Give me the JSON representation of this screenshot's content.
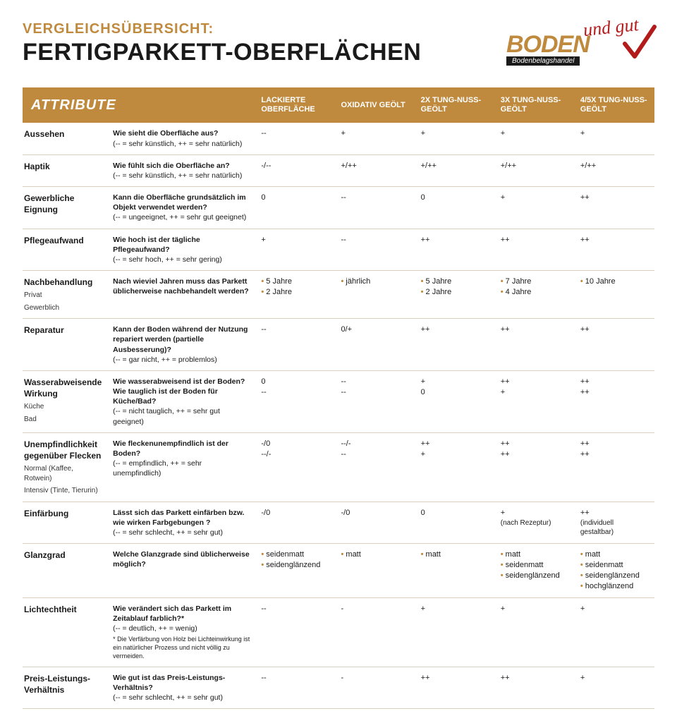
{
  "colors": {
    "brand_gold": "#c08a3e",
    "brand_red": "#b31b1b",
    "text": "#1a1a1a",
    "row_border": "#d9d0c2",
    "background": "#ffffff"
  },
  "header": {
    "pretitle": "VERGLEICHSÜBERSICHT:",
    "title": "FERTIGPARKETT-OBERFLÄCHEN",
    "logo_boden": "BODEN",
    "logo_undgut": "und gut",
    "logo_sub": "Bodenbelagshandel"
  },
  "table": {
    "head_attr": "ATTRIBUTE",
    "cols": [
      "LACKIERTE OBERFLÄCHE",
      "OXIDATIV GEÖLT",
      "2X TUNG-NUSS-GEÖLT",
      "3X TUNG-NUSS-GEÖLT",
      "4/5X TUNG-NUSS-GEÖLT"
    ],
    "rows": [
      {
        "attr": "Aussehen",
        "q": "Wie sieht die Oberfläche aus?",
        "legend": "(-- = sehr künstlich, ++ = sehr natürlich)",
        "vals": [
          [
            "--"
          ],
          [
            "+"
          ],
          [
            "+"
          ],
          [
            "+"
          ],
          [
            "+"
          ]
        ]
      },
      {
        "attr": "Haptik",
        "q": "Wie fühlt sich die Oberfläche an?",
        "legend": "(-- = sehr künstlich, ++ = sehr natürlich)",
        "vals": [
          [
            "-/--"
          ],
          [
            "+/++"
          ],
          [
            "+/++"
          ],
          [
            "+/++"
          ],
          [
            "+/++"
          ]
        ]
      },
      {
        "attr": "Gewerbliche Eignung",
        "q": "Kann die Oberfläche grundsätzlich im Objekt verwendet werden?",
        "legend": "(-- = ungeeignet, ++ = sehr gut geeignet)",
        "vals": [
          [
            "0"
          ],
          [
            "--"
          ],
          [
            "0"
          ],
          [
            "+"
          ],
          [
            "++"
          ]
        ]
      },
      {
        "attr": "Pflegeaufwand",
        "q": "Wie hoch ist der tägliche Pflegeaufwand?",
        "legend": "(-- = sehr hoch, ++ = sehr gering)",
        "vals": [
          [
            "+"
          ],
          [
            "--"
          ],
          [
            "++"
          ],
          [
            "++"
          ],
          [
            "++"
          ]
        ]
      },
      {
        "attr": "Nachbehandlung",
        "sub": [
          "Privat",
          "Gewerblich"
        ],
        "q": "Nach wieviel Jahren muss das Parkett üblicherweise nachbehandelt werden?",
        "vals": [
          [
            "5 Jahre",
            "2 Jahre"
          ],
          [
            "jährlich"
          ],
          [
            "5 Jahre",
            "2 Jahre"
          ],
          [
            "7 Jahre",
            "4 Jahre"
          ],
          [
            "10 Jahre"
          ]
        ],
        "bullet": true
      },
      {
        "attr": "Reparatur",
        "q": "Kann der Boden während der Nutzung repariert werden (partielle Ausbesserung)?",
        "legend": "(-- = gar nicht, ++ = problemlos)",
        "vals": [
          [
            "--"
          ],
          [
            "0/+"
          ],
          [
            "++"
          ],
          [
            "++"
          ],
          [
            "++"
          ]
        ]
      },
      {
        "attr": "Wasserabweisende Wirkung",
        "sub": [
          "Küche",
          "Bad"
        ],
        "q": "Wie wasserabweisend ist der Boden? Wie tauglich ist der Boden für Küche/Bad?",
        "legend": "(-- = nicht tauglich, ++ = sehr gut geeignet)",
        "vals": [
          [
            "0",
            "--"
          ],
          [
            "--",
            "--"
          ],
          [
            "+",
            "0"
          ],
          [
            "++",
            "+"
          ],
          [
            "++",
            "++"
          ]
        ]
      },
      {
        "attr": "Unempfindlichkeit gegenüber Flecken",
        "sub": [
          "Normal (Kaffee, Rotwein)",
          "Intensiv (Tinte, Tierurin)"
        ],
        "q": "Wie fleckenunempfindlich ist der Boden?",
        "legend": "(-- = empfindlich, ++ = sehr unempfindlich)",
        "vals": [
          [
            "-/0",
            "--/-"
          ],
          [
            "--/-",
            "--"
          ],
          [
            "++",
            "+"
          ],
          [
            "++",
            "++"
          ],
          [
            "++",
            "++"
          ]
        ]
      },
      {
        "attr": "Einfärbung",
        "q": "Lässt sich das Parkett einfärben bzw. wie wirken Farbgebungen ?",
        "legend": "(-- = sehr schlecht, ++ = sehr gut)",
        "vals": [
          [
            "-/0"
          ],
          [
            "-/0"
          ],
          [
            "0"
          ],
          [
            "+",
            "(nach Rezeptur)"
          ],
          [
            "++",
            "(individuell gestaltbar)"
          ]
        ]
      },
      {
        "attr": "Glanzgrad",
        "q": "Welche Glanzgrade sind üblicherweise möglich?",
        "vals": [
          [
            "seidenmatt",
            "seidenglänzend"
          ],
          [
            "matt"
          ],
          [
            "matt"
          ],
          [
            "matt",
            "seidenmatt",
            "seidenglänzend"
          ],
          [
            "matt",
            "seidenmatt",
            "seidenglänzend",
            "hochglänzend"
          ]
        ],
        "bullet": true
      },
      {
        "attr": "Lichtechtheit",
        "q": "Wie verändert sich das Parkett im Zeitablauf farblich?*",
        "legend": "(-- = deutlich, ++ = wenig)",
        "foot": "* Die Verfärbung von Holz bei Lichteinwirkung ist ein natürlicher Prozess und nicht völlig zu vermeiden.",
        "vals": [
          [
            "--"
          ],
          [
            "-"
          ],
          [
            "+"
          ],
          [
            "+"
          ],
          [
            "+"
          ]
        ]
      },
      {
        "attr": "Preis-Leistungs-Verhältnis",
        "q": "Wie gut ist das Preis-Leistungs-Verhältnis?",
        "legend": "(-- = sehr schlecht, ++ = sehr gut)",
        "vals": [
          [
            "--"
          ],
          [
            "-"
          ],
          [
            "++"
          ],
          [
            "++"
          ],
          [
            "+"
          ]
        ]
      }
    ]
  }
}
